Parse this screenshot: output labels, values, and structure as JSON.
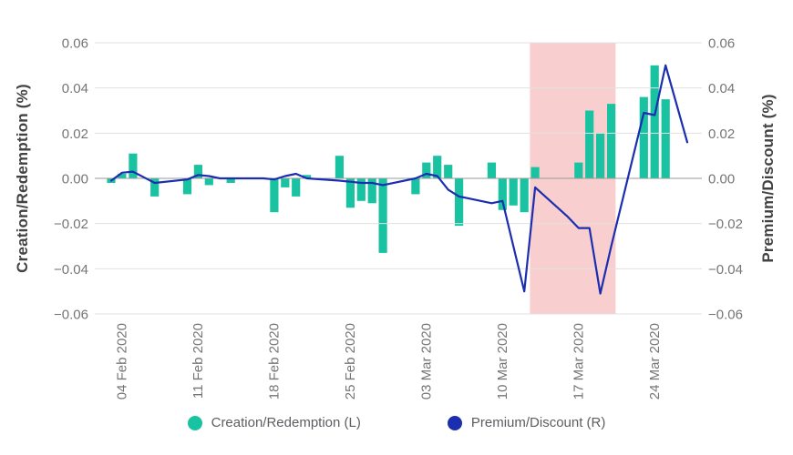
{
  "chart_data": {
    "type": "bar+line dual-axis combo",
    "left_axis": {
      "title": "Creation/Redemption (%)",
      "tick_labels": [
        "0.06",
        "0.04",
        "0.02",
        "0.00",
        "−0.02",
        "−0.04",
        "−0.06"
      ],
      "tick_values": [
        0.06,
        0.04,
        0.02,
        0,
        -0.02,
        -0.04,
        -0.06
      ],
      "range": [
        -0.06,
        0.06
      ]
    },
    "right_axis": {
      "title": "Premium/Discount (%)",
      "tick_labels": [
        "0.06",
        "0.04",
        "0.02",
        "0.00",
        "−0.02",
        "−0.04",
        "−0.06"
      ],
      "tick_values": [
        0.06,
        0.04,
        0.02,
        0,
        -0.02,
        -0.04,
        -0.06
      ],
      "range": [
        -0.06,
        0.06
      ]
    },
    "x_axis": {
      "ticks": [
        {
          "label": "04 Feb 2020",
          "d": 1
        },
        {
          "label": "11 Feb 2020",
          "d": 8
        },
        {
          "label": "18 Feb 2020",
          "d": 15
        },
        {
          "label": "25 Feb 2020",
          "d": 22
        },
        {
          "label": "03 Mar 2020",
          "d": 29
        },
        {
          "label": "10 Mar 2020",
          "d": 36
        },
        {
          "label": "17 Mar 2020",
          "d": 43
        },
        {
          "label": "24 Mar 2020",
          "d": 50
        }
      ]
    },
    "series": [
      {
        "name": "Creation/Redemption (L)",
        "type": "bar",
        "axis": "left",
        "color": "#19C3A2"
      },
      {
        "name": "Premium/Discount (R)",
        "type": "line",
        "axis": "right",
        "color": "#1C2EB0"
      }
    ],
    "highlight": {
      "from_date": "12 Mar 2020",
      "to_date": "20 Mar 2020",
      "from_day": 38.52,
      "to_day": 46.4,
      "color": "#F8CFCE"
    },
    "points": [
      {
        "date": "03 Feb 2020",
        "d": 0,
        "bar": -0.002,
        "line": -0.001
      },
      {
        "date": "04 Feb 2020",
        "d": 1,
        "bar": 0.002,
        "line": 0.0025
      },
      {
        "date": "05 Feb 2020",
        "d": 2,
        "bar": 0.011,
        "line": 0.003
      },
      {
        "date": "06 Feb 2020",
        "d": 3,
        "bar": 0,
        "line": 0.0005
      },
      {
        "date": "07 Feb 2020",
        "d": 4,
        "bar": -0.008,
        "line": -0.002
      },
      {
        "date": "10 Feb 2020",
        "d": 7,
        "bar": -0.007,
        "line": -0.0005
      },
      {
        "date": "11 Feb 2020",
        "d": 8,
        "bar": 0.006,
        "line": 0.0015
      },
      {
        "date": "12 Feb 2020",
        "d": 9,
        "bar": -0.003,
        "line": 0.001
      },
      {
        "date": "13 Feb 2020",
        "d": 10,
        "bar": 0,
        "line": 0
      },
      {
        "date": "14 Feb 2020",
        "d": 11,
        "bar": -0.002,
        "line": 0
      },
      {
        "date": "17 Feb 2020",
        "d": 14,
        "bar": 0,
        "line": 0
      },
      {
        "date": "18 Feb 2020",
        "d": 15,
        "bar": -0.015,
        "line": -0.0005
      },
      {
        "date": "19 Feb 2020",
        "d": 16,
        "bar": -0.004,
        "line": 0.001
      },
      {
        "date": "20 Feb 2020",
        "d": 17,
        "bar": -0.008,
        "line": 0.002
      },
      {
        "date": "21 Feb 2020",
        "d": 18,
        "bar": 0.0015,
        "line": 0
      },
      {
        "date": "24 Feb 2020",
        "d": 21,
        "bar": 0.01,
        "line": -0.001
      },
      {
        "date": "25 Feb 2020",
        "d": 22,
        "bar": -0.013,
        "line": -0.0015
      },
      {
        "date": "26 Feb 2020",
        "d": 23,
        "bar": -0.01,
        "line": -0.002
      },
      {
        "date": "27 Feb 2020",
        "d": 24,
        "bar": -0.011,
        "line": -0.002
      },
      {
        "date": "28 Feb 2020",
        "d": 25,
        "bar": -0.033,
        "line": -0.003
      },
      {
        "date": "02 Mar 2020",
        "d": 28,
        "bar": -0.007,
        "line": 0
      },
      {
        "date": "03 Mar 2020",
        "d": 29,
        "bar": 0.007,
        "line": 0.002
      },
      {
        "date": "04 Mar 2020",
        "d": 30,
        "bar": 0.01,
        "line": 0.001
      },
      {
        "date": "05 Mar 2020",
        "d": 31,
        "bar": 0.006,
        "line": -0.005
      },
      {
        "date": "06 Mar 2020",
        "d": 32,
        "bar": -0.021,
        "line": -0.008
      },
      {
        "date": "09 Mar 2020",
        "d": 35,
        "bar": 0.007,
        "line": -0.011
      },
      {
        "date": "10 Mar 2020",
        "d": 36,
        "bar": -0.014,
        "line": -0.01
      },
      {
        "date": "11 Mar 2020",
        "d": 37,
        "bar": -0.012,
        "line": -0.03
      },
      {
        "date": "12 Mar 2020",
        "d": 38,
        "bar": -0.015,
        "line": -0.05
      },
      {
        "date": "13 Mar 2020",
        "d": 39,
        "bar": 0.005,
        "line": -0.004
      },
      {
        "date": "16 Mar 2020",
        "d": 42,
        "bar": 0,
        "line": -0.017
      },
      {
        "date": "17 Mar 2020",
        "d": 43,
        "bar": 0.007,
        "line": -0.022
      },
      {
        "date": "18 Mar 2020",
        "d": 44,
        "bar": 0.03,
        "line": -0.022
      },
      {
        "date": "19 Mar 2020",
        "d": 45,
        "bar": 0.02,
        "line": -0.051
      },
      {
        "date": "20 Mar 2020",
        "d": 46,
        "bar": 0.033,
        "line": -0.03
      },
      {
        "date": "23 Mar 2020",
        "d": 49,
        "bar": 0.036,
        "line": 0.029
      },
      {
        "date": "24 Mar 2020",
        "d": 50,
        "bar": 0.05,
        "line": 0.028
      },
      {
        "date": "25 Mar 2020",
        "d": 51,
        "bar": 0.035,
        "line": 0.05
      },
      {
        "date": "26 Mar 2020",
        "d": 52,
        "bar": 0,
        "line": 0.033
      },
      {
        "date": "27 Mar 2020",
        "d": 53,
        "bar": 0,
        "line": 0.016
      }
    ],
    "legend": [
      {
        "label": "Creation/Redemption (L)",
        "color": "#19C3A2"
      },
      {
        "label": "Premium/Discount (R)",
        "color": "#1C2EB0"
      }
    ],
    "grid": {
      "line_color": "#E1E1E1",
      "zero_line_color": "#9A9A9A"
    }
  }
}
